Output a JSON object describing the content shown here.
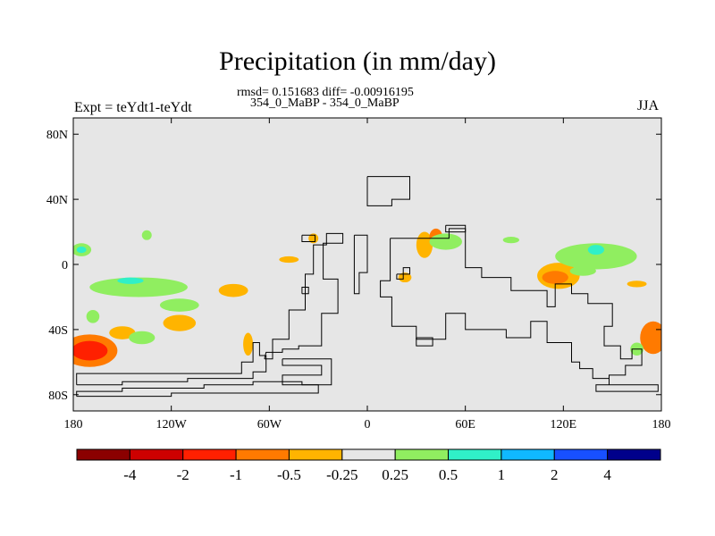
{
  "header": {
    "title": "Precipitation (in mm/day)",
    "stats": "rmsd= 0.151683 diff= -0.00916195",
    "subtitle": "354_0_MaBP - 354_0_MaBP",
    "left_label": "Expt = teYdt1-teYdt",
    "right_label": "JJA"
  },
  "chart_data": {
    "type": "heatmap",
    "title": "Precipitation (in mm/day)",
    "season": "JJA",
    "xlim": [
      -180,
      180
    ],
    "ylim": [
      -90,
      90
    ],
    "x_ticks": [
      {
        "value": -180,
        "label": "180"
      },
      {
        "value": -120,
        "label": "120W"
      },
      {
        "value": -60,
        "label": "60W"
      },
      {
        "value": 0,
        "label": "0"
      },
      {
        "value": 60,
        "label": "60E"
      },
      {
        "value": 120,
        "label": "120E"
      },
      {
        "value": 180,
        "label": "180"
      }
    ],
    "y_ticks": [
      {
        "value": 80,
        "label": "80N"
      },
      {
        "value": 40,
        "label": "40N"
      },
      {
        "value": 0,
        "label": "0"
      },
      {
        "value": -40,
        "label": "40S"
      },
      {
        "value": -80,
        "label": "80S"
      }
    ],
    "background_color": "#e6e6e6",
    "colorbar": {
      "labels": [
        "-4",
        "-2",
        "-1",
        "-0.5",
        "-0.25",
        "0.25",
        "0.5",
        "1",
        "2",
        "4"
      ],
      "colors": [
        "#8b0000",
        "#cd0000",
        "#ff2000",
        "#ff7a00",
        "#ffb400",
        "#e6e6e6",
        "#90ee60",
        "#30f0c8",
        "#10b8ff",
        "#1850ff",
        "#00008b"
      ]
    },
    "anomaly_patches": [
      {
        "lon": -170,
        "lat": -53,
        "rlon": 17,
        "rlat": 10,
        "level": "-0.5"
      },
      {
        "lon": -170,
        "lat": -53,
        "rlon": 11,
        "rlat": 6,
        "level": "-1"
      },
      {
        "lon": -150,
        "lat": -42,
        "rlon": 8,
        "rlat": 4,
        "level": "-0.25"
      },
      {
        "lon": -115,
        "lat": -36,
        "rlon": 10,
        "rlat": 5,
        "level": "-0.25"
      },
      {
        "lon": -82,
        "lat": -16,
        "rlon": 9,
        "rlat": 4,
        "level": "-0.25"
      },
      {
        "lon": -33,
        "lat": 16,
        "rlon": 3,
        "rlat": 3,
        "level": "-0.25"
      },
      {
        "lon": -48,
        "lat": 3,
        "rlon": 6,
        "rlat": 2,
        "level": "-0.25"
      },
      {
        "lon": -73,
        "lat": -49,
        "rlon": 3,
        "rlat": 7,
        "level": "-0.25"
      },
      {
        "lon": 35,
        "lat": 12,
        "rlon": 5,
        "rlat": 8,
        "level": "-0.25"
      },
      {
        "lon": 42,
        "lat": 17,
        "rlon": 4,
        "rlat": 5,
        "level": "-0.5"
      },
      {
        "lon": 23,
        "lat": -8,
        "rlon": 4,
        "rlat": 3,
        "level": "-0.25"
      },
      {
        "lon": 117,
        "lat": -7,
        "rlon": 13,
        "rlat": 8,
        "level": "-0.25"
      },
      {
        "lon": 115,
        "lat": -8,
        "rlon": 8,
        "rlat": 4,
        "level": "-0.5"
      },
      {
        "lon": 175,
        "lat": -45,
        "rlon": 8,
        "rlat": 10,
        "level": "-0.5"
      },
      {
        "lon": 165,
        "lat": -12,
        "rlon": 6,
        "rlat": 2,
        "level": "-0.25"
      },
      {
        "lon": -140,
        "lat": -14,
        "rlon": 30,
        "rlat": 6,
        "level": "0.25"
      },
      {
        "lon": -145,
        "lat": -10,
        "rlon": 8,
        "rlat": 2,
        "level": "0.5"
      },
      {
        "lon": -115,
        "lat": -25,
        "rlon": 12,
        "rlat": 4,
        "level": "0.25"
      },
      {
        "lon": -175,
        "lat": 9,
        "rlon": 6,
        "rlat": 4,
        "level": "0.25"
      },
      {
        "lon": -175,
        "lat": 9,
        "rlon": 3,
        "rlat": 2,
        "level": "0.5"
      },
      {
        "lon": -135,
        "lat": 18,
        "rlon": 3,
        "rlat": 3,
        "level": "0.25"
      },
      {
        "lon": -168,
        "lat": -32,
        "rlon": 4,
        "rlat": 4,
        "level": "0.25"
      },
      {
        "lon": -138,
        "lat": -45,
        "rlon": 8,
        "rlat": 4,
        "level": "0.25"
      },
      {
        "lon": 48,
        "lat": 14,
        "rlon": 10,
        "rlat": 5,
        "level": "0.25"
      },
      {
        "lon": 140,
        "lat": 5,
        "rlon": 25,
        "rlat": 8,
        "level": "0.25"
      },
      {
        "lon": 140,
        "lat": 9,
        "rlon": 5,
        "rlat": 3,
        "level": "0.5"
      },
      {
        "lon": 132,
        "lat": -4,
        "rlon": 8,
        "rlat": 3,
        "level": "0.25"
      },
      {
        "lon": 165,
        "lat": -52,
        "rlon": 4,
        "rlat": 4,
        "level": "0.25"
      },
      {
        "lon": 88,
        "lat": 15,
        "rlon": 5,
        "rlat": 2,
        "level": "0.25"
      }
    ],
    "coastlines": [
      [
        [
          -178,
          -74
        ],
        [
          -150,
          -74
        ],
        [
          -150,
          -72
        ],
        [
          -110,
          -72
        ],
        [
          -110,
          -70
        ],
        [
          -70,
          -70
        ],
        [
          -70,
          -66
        ],
        [
          -62,
          -66
        ],
        [
          -62,
          -56
        ],
        [
          -66,
          -56
        ],
        [
          -66,
          -48
        ],
        [
          -70,
          -48
        ],
        [
          -70,
          -60
        ],
        [
          -77,
          -60
        ],
        [
          -77,
          -67
        ],
        [
          -178,
          -67
        ],
        [
          -178,
          -74
        ]
      ],
      [
        [
          -178,
          -81
        ],
        [
          -120,
          -81
        ],
        [
          -120,
          -79
        ],
        [
          -30,
          -79
        ],
        [
          -30,
          -74
        ],
        [
          -40,
          -74
        ],
        [
          -40,
          -72
        ],
        [
          -70,
          -72
        ],
        [
          -70,
          -74
        ],
        [
          -100,
          -74
        ],
        [
          -100,
          -76
        ],
        [
          -150,
          -76
        ],
        [
          -150,
          -78
        ],
        [
          -178,
          -78
        ],
        [
          -178,
          -81
        ]
      ],
      [
        [
          -63,
          -58
        ],
        [
          -58,
          -58
        ],
        [
          -58,
          -46
        ],
        [
          -48,
          -46
        ],
        [
          -48,
          -28
        ],
        [
          -38,
          -28
        ],
        [
          -38,
          -6
        ],
        [
          -33,
          -6
        ],
        [
          -33,
          12
        ],
        [
          -25,
          12
        ],
        [
          -25,
          19
        ],
        [
          -15,
          19
        ],
        [
          -15,
          13
        ],
        [
          -27,
          13
        ],
        [
          -27,
          -9
        ],
        [
          -18,
          -9
        ],
        [
          -18,
          -30
        ],
        [
          -28,
          -30
        ],
        [
          -28,
          -50
        ],
        [
          -42,
          -50
        ],
        [
          -42,
          -52
        ],
        [
          -52,
          -52
        ],
        [
          -52,
          -54
        ],
        [
          -62,
          -54
        ],
        [
          -63,
          -58
        ]
      ],
      [
        [
          -40,
          18
        ],
        [
          -32,
          18
        ],
        [
          -32,
          14
        ],
        [
          -40,
          14
        ],
        [
          -40,
          18
        ]
      ],
      [
        [
          -40,
          -18
        ],
        [
          -36,
          -18
        ],
        [
          -36,
          -14
        ],
        [
          -40,
          -14
        ],
        [
          -40,
          -18
        ]
      ],
      [
        [
          -52,
          -58
        ],
        [
          -22,
          -58
        ],
        [
          -22,
          -74
        ],
        [
          -52,
          -74
        ],
        [
          -52,
          -68
        ],
        [
          -28,
          -68
        ],
        [
          -28,
          -62
        ],
        [
          -52,
          -62
        ],
        [
          -52,
          -58
        ]
      ],
      [
        [
          0,
          54
        ],
        [
          26,
          54
        ],
        [
          26,
          40
        ],
        [
          15,
          40
        ],
        [
          15,
          36
        ],
        [
          0,
          36
        ],
        [
          0,
          54
        ]
      ],
      [
        [
          -8,
          18
        ],
        [
          -8,
          -18
        ],
        [
          -5,
          -18
        ],
        [
          -5,
          -5
        ],
        [
          0,
          -5
        ],
        [
          0,
          18
        ],
        [
          -8,
          18
        ]
      ],
      [
        [
          14,
          16
        ],
        [
          50,
          16
        ],
        [
          50,
          22
        ],
        [
          60,
          22
        ],
        [
          60,
          -2
        ],
        [
          70,
          -2
        ],
        [
          70,
          -8
        ],
        [
          88,
          -8
        ],
        [
          88,
          -16
        ],
        [
          110,
          -16
        ],
        [
          110,
          -26
        ],
        [
          115,
          -26
        ],
        [
          115,
          -12
        ],
        [
          125,
          -12
        ],
        [
          125,
          -18
        ],
        [
          135,
          -18
        ],
        [
          135,
          -24
        ],
        [
          150,
          -24
        ],
        [
          150,
          -38
        ],
        [
          145,
          -38
        ],
        [
          145,
          -50
        ],
        [
          155,
          -50
        ],
        [
          155,
          -58
        ],
        [
          162,
          -58
        ],
        [
          162,
          -52
        ],
        [
          168,
          -52
        ],
        [
          168,
          -62
        ],
        [
          158,
          -62
        ],
        [
          158,
          -68
        ],
        [
          148,
          -68
        ],
        [
          148,
          -74
        ],
        [
          140,
          -74
        ],
        [
          140,
          -78
        ],
        [
          178,
          -78
        ],
        [
          178,
          -74
        ],
        [
          148,
          -74
        ],
        [
          148,
          -70
        ],
        [
          138,
          -70
        ],
        [
          138,
          -64
        ],
        [
          130,
          -64
        ],
        [
          130,
          -60
        ],
        [
          125,
          -60
        ],
        [
          125,
          -48
        ],
        [
          110,
          -48
        ],
        [
          110,
          -35
        ],
        [
          100,
          -35
        ],
        [
          100,
          -45
        ],
        [
          85,
          -45
        ],
        [
          85,
          -40
        ],
        [
          60,
          -40
        ],
        [
          60,
          -30
        ],
        [
          48,
          -30
        ],
        [
          48,
          -46
        ],
        [
          30,
          -46
        ],
        [
          30,
          -38
        ],
        [
          15,
          -38
        ],
        [
          15,
          -20
        ],
        [
          8,
          -20
        ],
        [
          8,
          -10
        ],
        [
          14,
          -10
        ],
        [
          14,
          16
        ]
      ],
      [
        [
          30,
          -45
        ],
        [
          40,
          -45
        ],
        [
          40,
          -50
        ],
        [
          30,
          -50
        ],
        [
          30,
          -45
        ]
      ],
      [
        [
          18,
          -6
        ],
        [
          26,
          -6
        ],
        [
          26,
          -2
        ],
        [
          22,
          -2
        ],
        [
          22,
          -9
        ],
        [
          18,
          -9
        ],
        [
          18,
          -6
        ]
      ],
      [
        [
          48,
          24
        ],
        [
          60,
          24
        ],
        [
          60,
          20
        ],
        [
          48,
          20
        ],
        [
          48,
          24
        ]
      ]
    ]
  }
}
